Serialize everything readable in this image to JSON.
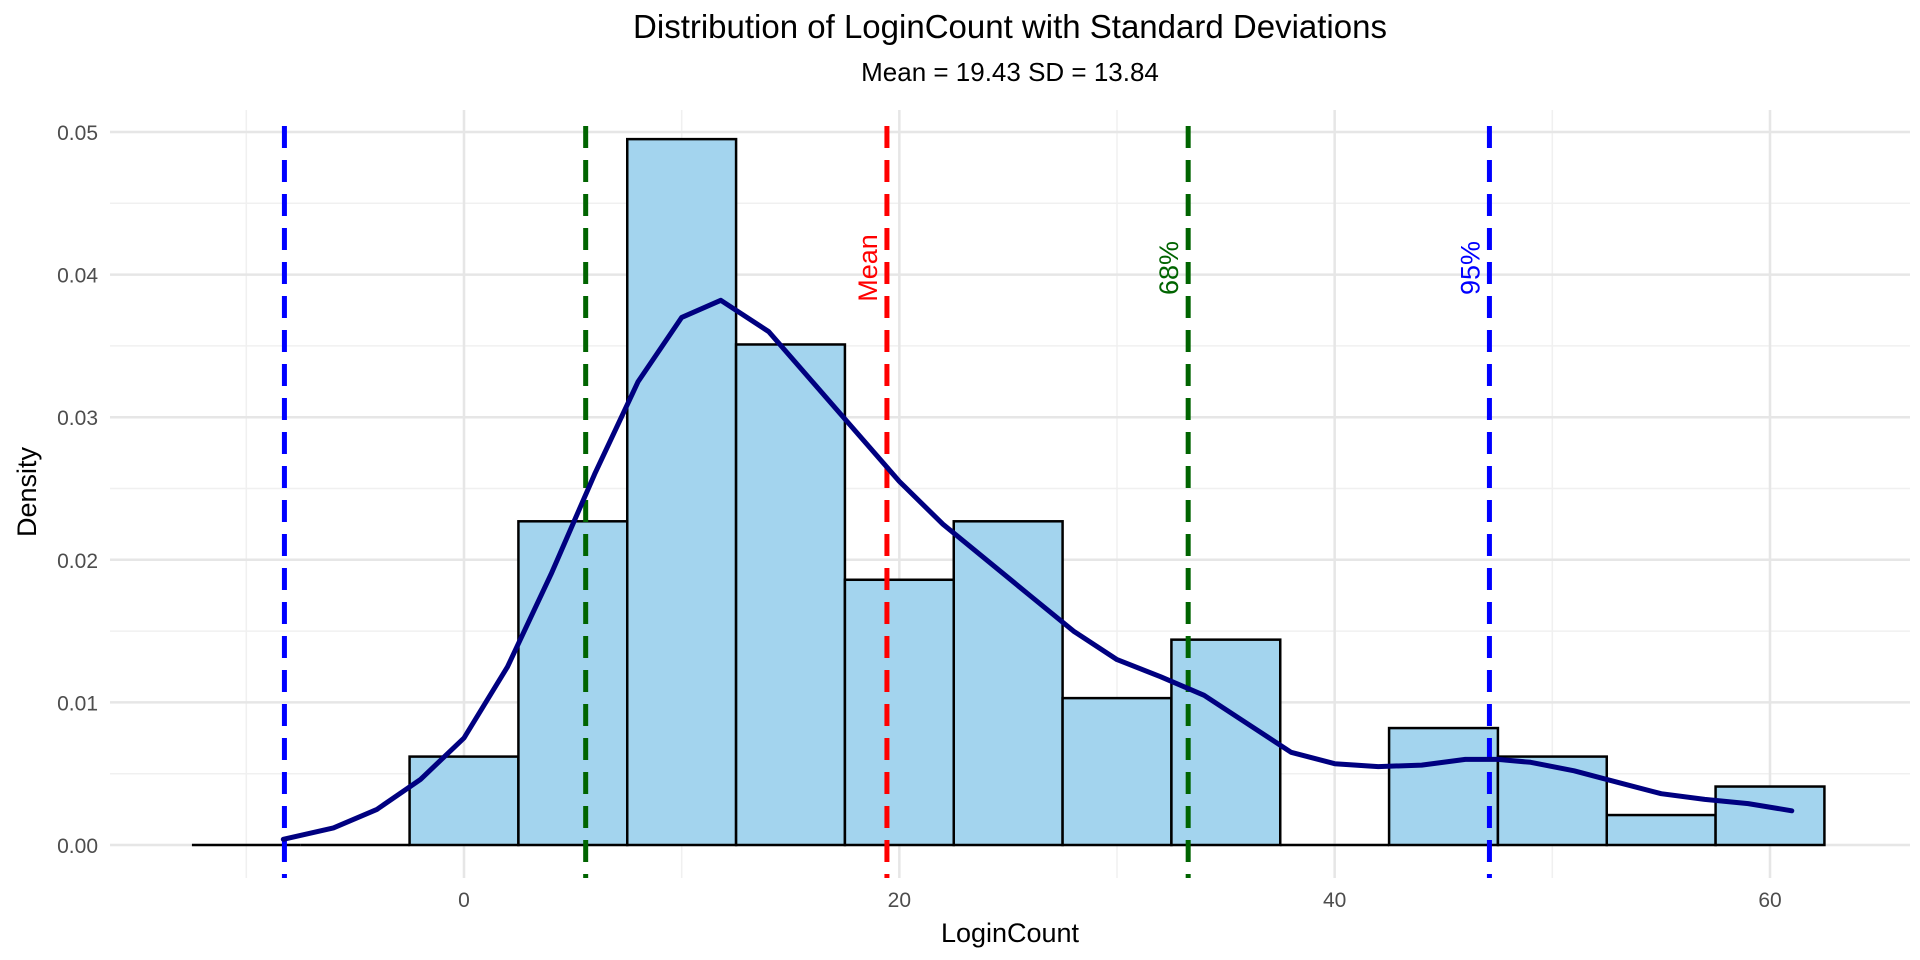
{
  "chart_data": {
    "type": "histogram",
    "title": "Distribution of LoginCount with Standard Deviations",
    "subtitle": "Mean = 19.43 SD = 13.84",
    "xlabel": "LoginCount",
    "ylabel": "Density",
    "xlim": [
      -13,
      64
    ],
    "ylim": [
      0,
      0.05
    ],
    "x_ticks": [
      0,
      20,
      40,
      60
    ],
    "y_ticks": [
      0.0,
      0.01,
      0.02,
      0.03,
      0.04,
      0.05
    ],
    "x_tick_labels": [
      "0",
      "20",
      "40",
      "60"
    ],
    "y_tick_labels": [
      "0.00",
      "0.01",
      "0.02",
      "0.03",
      "0.04",
      "0.05"
    ],
    "grid": true,
    "legend": "none",
    "bins": [
      {
        "x0": -12.5,
        "x1": -7.5,
        "density": 0.0
      },
      {
        "x0": -7.5,
        "x1": -2.5,
        "density": 0.0
      },
      {
        "x0": -2.5,
        "x1": 2.5,
        "density": 0.0062
      },
      {
        "x0": 2.5,
        "x1": 7.5,
        "density": 0.0227
      },
      {
        "x0": 7.5,
        "x1": 12.5,
        "density": 0.0495
      },
      {
        "x0": 12.5,
        "x1": 17.5,
        "density": 0.0351
      },
      {
        "x0": 17.5,
        "x1": 22.5,
        "density": 0.0186
      },
      {
        "x0": 22.5,
        "x1": 27.5,
        "density": 0.0227
      },
      {
        "x0": 27.5,
        "x1": 32.5,
        "density": 0.0103
      },
      {
        "x0": 32.5,
        "x1": 37.5,
        "density": 0.0144
      },
      {
        "x0": 37.5,
        "x1": 42.5,
        "density": 0.0
      },
      {
        "x0": 42.5,
        "x1": 47.5,
        "density": 0.0082
      },
      {
        "x0": 47.5,
        "x1": 52.5,
        "density": 0.0062
      },
      {
        "x0": 52.5,
        "x1": 57.5,
        "density": 0.0021
      },
      {
        "x0": 57.5,
        "x1": 62.5,
        "density": 0.0041
      }
    ],
    "density_curve": {
      "x": [
        -8.3,
        -6,
        -4,
        -2,
        0,
        2,
        4,
        6,
        8,
        10,
        11.8,
        14,
        16,
        18,
        20,
        22,
        24,
        26,
        28,
        30,
        32,
        34,
        36,
        38,
        40,
        42,
        44,
        46,
        47.5,
        49,
        51,
        53,
        55,
        57,
        59,
        61
      ],
      "y": [
        0.0004,
        0.0012,
        0.0025,
        0.0046,
        0.0075,
        0.0125,
        0.019,
        0.026,
        0.0325,
        0.037,
        0.0382,
        0.036,
        0.0325,
        0.029,
        0.0255,
        0.0225,
        0.02,
        0.0175,
        0.015,
        0.013,
        0.0118,
        0.0105,
        0.0085,
        0.0065,
        0.0057,
        0.0055,
        0.0056,
        0.006,
        0.006,
        0.0058,
        0.0052,
        0.0044,
        0.0036,
        0.0032,
        0.0029,
        0.0024
      ]
    },
    "vlines": [
      {
        "x": -8.25,
        "color": "#0000ff",
        "label": ""
      },
      {
        "x": 5.59,
        "color": "#006400",
        "label": ""
      },
      {
        "x": 19.43,
        "color": "#ff0000",
        "label": "Mean"
      },
      {
        "x": 33.27,
        "color": "#006400",
        "label": "68%"
      },
      {
        "x": 47.11,
        "color": "#0000ff",
        "label": "95%"
      }
    ],
    "colors": {
      "bar_fill": "#a3d4ee",
      "bar_stroke": "#000000",
      "curve": "#000080",
      "grid": "#e6e6e6"
    }
  }
}
